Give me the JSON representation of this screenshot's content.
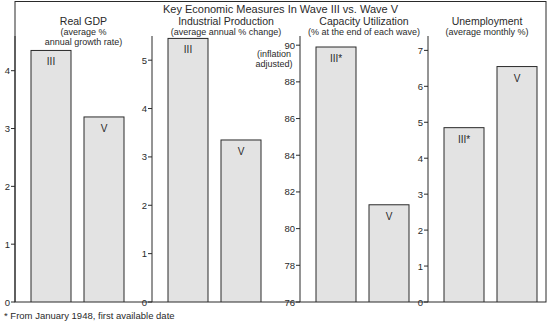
{
  "title": "Key Economic Measures In Wave III vs. Wave V",
  "footnote": "* From January 1948, first available date",
  "chart_data": [
    {
      "type": "bar",
      "title": "Real GDP",
      "subtitle": "(average %\nannual growth rate)",
      "categories": [
        "III",
        "V"
      ],
      "values": [
        4.35,
        3.2
      ],
      "color": "#e3e3e3",
      "ylim": [
        0,
        4.6
      ],
      "yticks": [
        0,
        1,
        2,
        3,
        4
      ],
      "grid": false
    },
    {
      "type": "bar",
      "title": "Industrial Production",
      "subtitle": "(average annual % change)",
      "annotations": [
        "(inflation\nadjusted)"
      ],
      "categories": [
        "III",
        "V"
      ],
      "values": [
        5.45,
        3.35
      ],
      "color": "#e3e3e3",
      "ylim": [
        0,
        5.5
      ],
      "yticks": [
        0,
        1,
        2,
        3,
        4,
        5
      ],
      "grid": false
    },
    {
      "type": "bar",
      "title": "Capacity Utilization",
      "subtitle": "(% at the end of each wave)",
      "categories": [
        "III*",
        "V"
      ],
      "values": [
        89.9,
        81.3
      ],
      "color": "#e3e3e3",
      "ylim": [
        76,
        90.5
      ],
      "yticks": [
        76,
        78,
        80,
        82,
        84,
        86,
        88,
        90
      ],
      "grid": false
    },
    {
      "type": "bar",
      "title": "Unemployment",
      "subtitle": "(average monthly %)",
      "categories": [
        "III*",
        "V"
      ],
      "values": [
        4.85,
        6.55
      ],
      "color": "#e3e3e3",
      "ylim": [
        0,
        7.4
      ],
      "yticks": [
        0,
        1,
        2,
        3,
        4,
        5,
        6,
        7
      ],
      "grid": false
    }
  ]
}
